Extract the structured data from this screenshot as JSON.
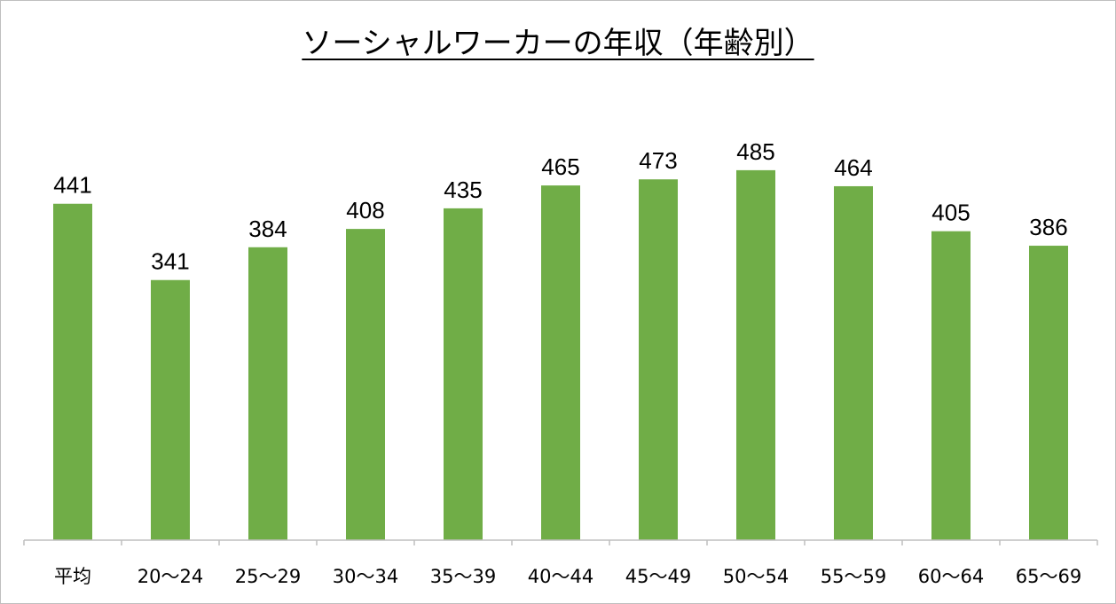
{
  "chart_data": {
    "type": "bar",
    "title": "ソーシャルワーカーの年収（年齢別）",
    "categories": [
      "平均",
      "20〜24",
      "25〜29",
      "30〜34",
      "35〜39",
      "40〜44",
      "45〜49",
      "50〜54",
      "55〜59",
      "60〜64",
      "65〜69"
    ],
    "values": [
      441,
      341,
      384,
      408,
      435,
      465,
      473,
      485,
      464,
      405,
      386
    ],
    "ylim": [
      0,
      500
    ],
    "grid": false,
    "data_labels": true,
    "bar_color": "#70AD47",
    "axis_color": "#BFBFBF"
  }
}
